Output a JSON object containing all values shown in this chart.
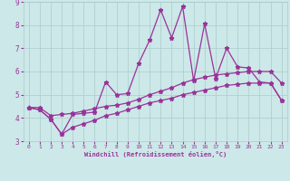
{
  "xlabel": "Windchill (Refroidissement éolien,°C)",
  "xlim": [
    -0.5,
    23.5
  ],
  "ylim": [
    3,
    9
  ],
  "xticks": [
    0,
    1,
    2,
    3,
    4,
    5,
    6,
    7,
    8,
    9,
    10,
    11,
    12,
    13,
    14,
    15,
    16,
    17,
    18,
    19,
    20,
    21,
    22,
    23
  ],
  "yticks": [
    3,
    4,
    5,
    6,
    7,
    8,
    9
  ],
  "bg_color": "#cce8e8",
  "line_color": "#993399",
  "grid_color": "#aacccc",
  "line1_y": [
    4.45,
    4.35,
    3.95,
    3.3,
    4.15,
    4.2,
    4.25,
    5.55,
    5.0,
    5.05,
    6.35,
    7.35,
    8.65,
    7.45,
    8.8,
    5.6,
    8.05,
    5.7,
    7.0,
    6.2,
    6.15,
    5.55,
    5.5,
    4.75
  ],
  "line2_y": [
    4.45,
    4.45,
    4.1,
    4.15,
    4.2,
    4.3,
    4.4,
    4.5,
    4.55,
    4.65,
    4.8,
    5.0,
    5.15,
    5.3,
    5.5,
    5.65,
    5.75,
    5.85,
    5.9,
    5.95,
    6.0,
    6.0,
    6.0,
    5.5
  ],
  "line3_y": [
    4.45,
    4.35,
    3.95,
    3.3,
    3.6,
    3.75,
    3.9,
    4.1,
    4.2,
    4.35,
    4.5,
    4.65,
    4.75,
    4.85,
    5.0,
    5.1,
    5.2,
    5.3,
    5.4,
    5.45,
    5.5,
    5.5,
    5.5,
    4.75
  ]
}
